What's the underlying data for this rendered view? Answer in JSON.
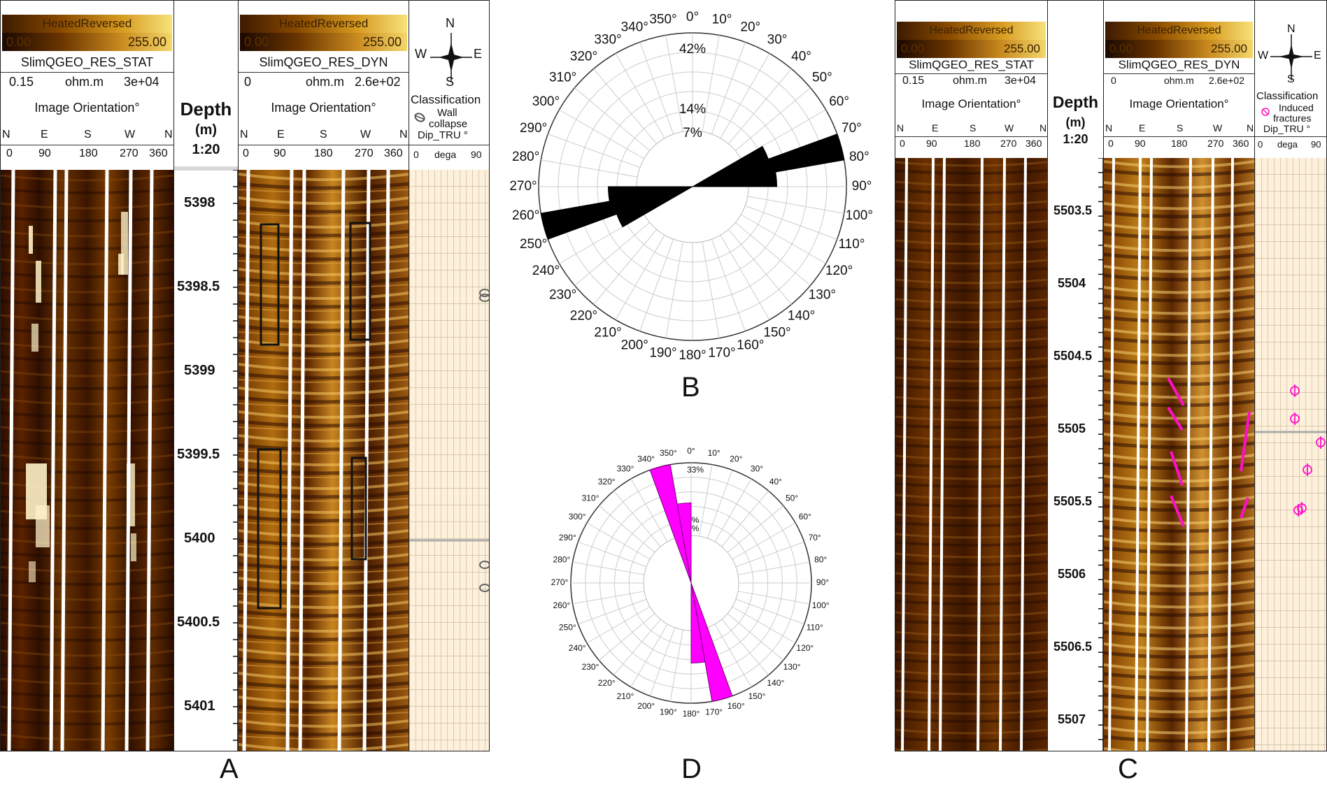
{
  "panels": {
    "A_label": "A",
    "B_label": "B",
    "C_label": "C",
    "D_label": "D"
  },
  "log_a": {
    "stat_track": {
      "palette": "HeatedReversed",
      "palette_min": "0.00",
      "palette_max": "255.00",
      "curve_name": "SlimQGEO_RES_STAT",
      "scale_min": "0.15",
      "unit": "ohm.m",
      "scale_max": "3e+04",
      "orientation_title": "Image Orientation°",
      "dirs": [
        "N",
        "E",
        "S",
        "W",
        "N"
      ],
      "ticks": [
        "0",
        "90",
        "180",
        "270",
        "360"
      ]
    },
    "depth_track": {
      "title": "Depth",
      "unit": "(m)",
      "scale": "1:20",
      "depths": [
        "5398",
        "5398.5",
        "5399",
        "5399.5",
        "5400",
        "5400.5",
        "5401"
      ]
    },
    "dyn_track": {
      "palette": "HeatedReversed",
      "palette_min": "0.00",
      "palette_max": "255.00",
      "curve_name": "SlimQGEO_RES_DYN",
      "scale_min": "0",
      "unit": "ohm.m",
      "scale_max": "2.6e+02",
      "orientation_title": "Image Orientation°",
      "dirs": [
        "N",
        "E",
        "S",
        "W",
        "N"
      ],
      "ticks": [
        "0",
        "90",
        "180",
        "270",
        "360"
      ]
    },
    "dip_track": {
      "compass": [
        "N",
        "W",
        "E",
        "S"
      ],
      "classification_title": "Classification",
      "legend_line1": "Wall",
      "legend_line2": "collapse",
      "dip_title": "Dip_TRU °",
      "ticks": [
        "0",
        "dega",
        "90"
      ]
    }
  },
  "log_c": {
    "stat_track": {
      "palette": "HeatedReversed",
      "palette_min": "0.00",
      "palette_max": "255.00",
      "curve_name": "SlimQGEO_RES_STAT",
      "scale_min": "0.15",
      "unit": "ohm.m",
      "scale_max": "3e+04",
      "orientation_title": "Image Orientation°",
      "dirs": [
        "N",
        "E",
        "S",
        "W",
        "N"
      ],
      "ticks": [
        "0",
        "90",
        "180",
        "270",
        "360"
      ]
    },
    "depth_track": {
      "title": "Depth",
      "unit": "(m)",
      "scale": "1:20",
      "depths": [
        "5503.5",
        "5504",
        "5504.5",
        "5505",
        "5505.5",
        "5506",
        "5506.5",
        "5507"
      ]
    },
    "dyn_track": {
      "palette": "HeatedReversed",
      "palette_min": "0.00",
      "palette_max": "255.00",
      "curve_name": "SlimQGEO_RES_DYN",
      "scale_min": "0",
      "unit": "ohm.m",
      "scale_max": "2.6e+02",
      "orientation_title": "Image Orientation°",
      "dirs": [
        "N",
        "E",
        "S",
        "W",
        "N"
      ],
      "ticks": [
        "0",
        "90",
        "180",
        "270",
        "360"
      ]
    },
    "dip_track": {
      "compass": [
        "N",
        "W",
        "E",
        "S"
      ],
      "classification_title": "Classification",
      "legend_line1": "Induced",
      "legend_line2": "fractures",
      "dip_title": "Dip_TRU °",
      "ticks": [
        "0",
        "dega",
        "90"
      ]
    }
  },
  "colors": {
    "rose_b": "#000000",
    "rose_d": "#ff00ff",
    "fracture": "#ff10c8",
    "box": "#111111"
  },
  "chart_data": [
    {
      "type": "rose",
      "id": "B",
      "angle_labels": [
        "0°",
        "10°",
        "20°",
        "30°",
        "40°",
        "50°",
        "60°",
        "70°",
        "80°",
        "90°",
        "100°",
        "110°",
        "120°",
        "130°",
        "140°",
        "150°",
        "160°",
        "170°",
        "180°",
        "190°",
        "200°",
        "210°",
        "220°",
        "230°",
        "240°",
        "250°",
        "260°",
        "270°",
        "280°",
        "290°",
        "300°",
        "310°",
        "320°",
        "330°",
        "340°",
        "350°"
      ],
      "ring_labels": [
        "42%",
        "14%",
        "7%"
      ],
      "bins": [
        {
          "from": 60,
          "to": 70,
          "value": 22
        },
        {
          "from": 70,
          "to": 80,
          "value": 42
        },
        {
          "from": 80,
          "to": 90,
          "value": 23
        },
        {
          "from": 240,
          "to": 250,
          "value": 22
        },
        {
          "from": 250,
          "to": 260,
          "value": 42
        },
        {
          "from": 260,
          "to": 270,
          "value": 23
        }
      ],
      "rmax": 42
    },
    {
      "type": "rose",
      "id": "D",
      "angle_labels": [
        "0°",
        "10°",
        "20°",
        "30°",
        "40°",
        "50°",
        "60°",
        "70°",
        "80°",
        "90°",
        "100°",
        "110°",
        "120°",
        "130°",
        "140°",
        "150°",
        "160°",
        "170°",
        "180°",
        "190°",
        "200°",
        "210°",
        "220°",
        "230°",
        "240°",
        "250°",
        "260°",
        "270°",
        "280°",
        "290°",
        "300°",
        "310°",
        "320°",
        "330°",
        "340°",
        "350°"
      ],
      "ring_labels": [
        "33%",
        "%",
        "%"
      ],
      "bins": [
        {
          "from": 340,
          "to": 350,
          "value": 33
        },
        {
          "from": 350,
          "to": 360,
          "value": 22
        },
        {
          "from": 160,
          "to": 170,
          "value": 33
        },
        {
          "from": 170,
          "to": 180,
          "value": 22
        }
      ],
      "rmax": 33
    }
  ]
}
